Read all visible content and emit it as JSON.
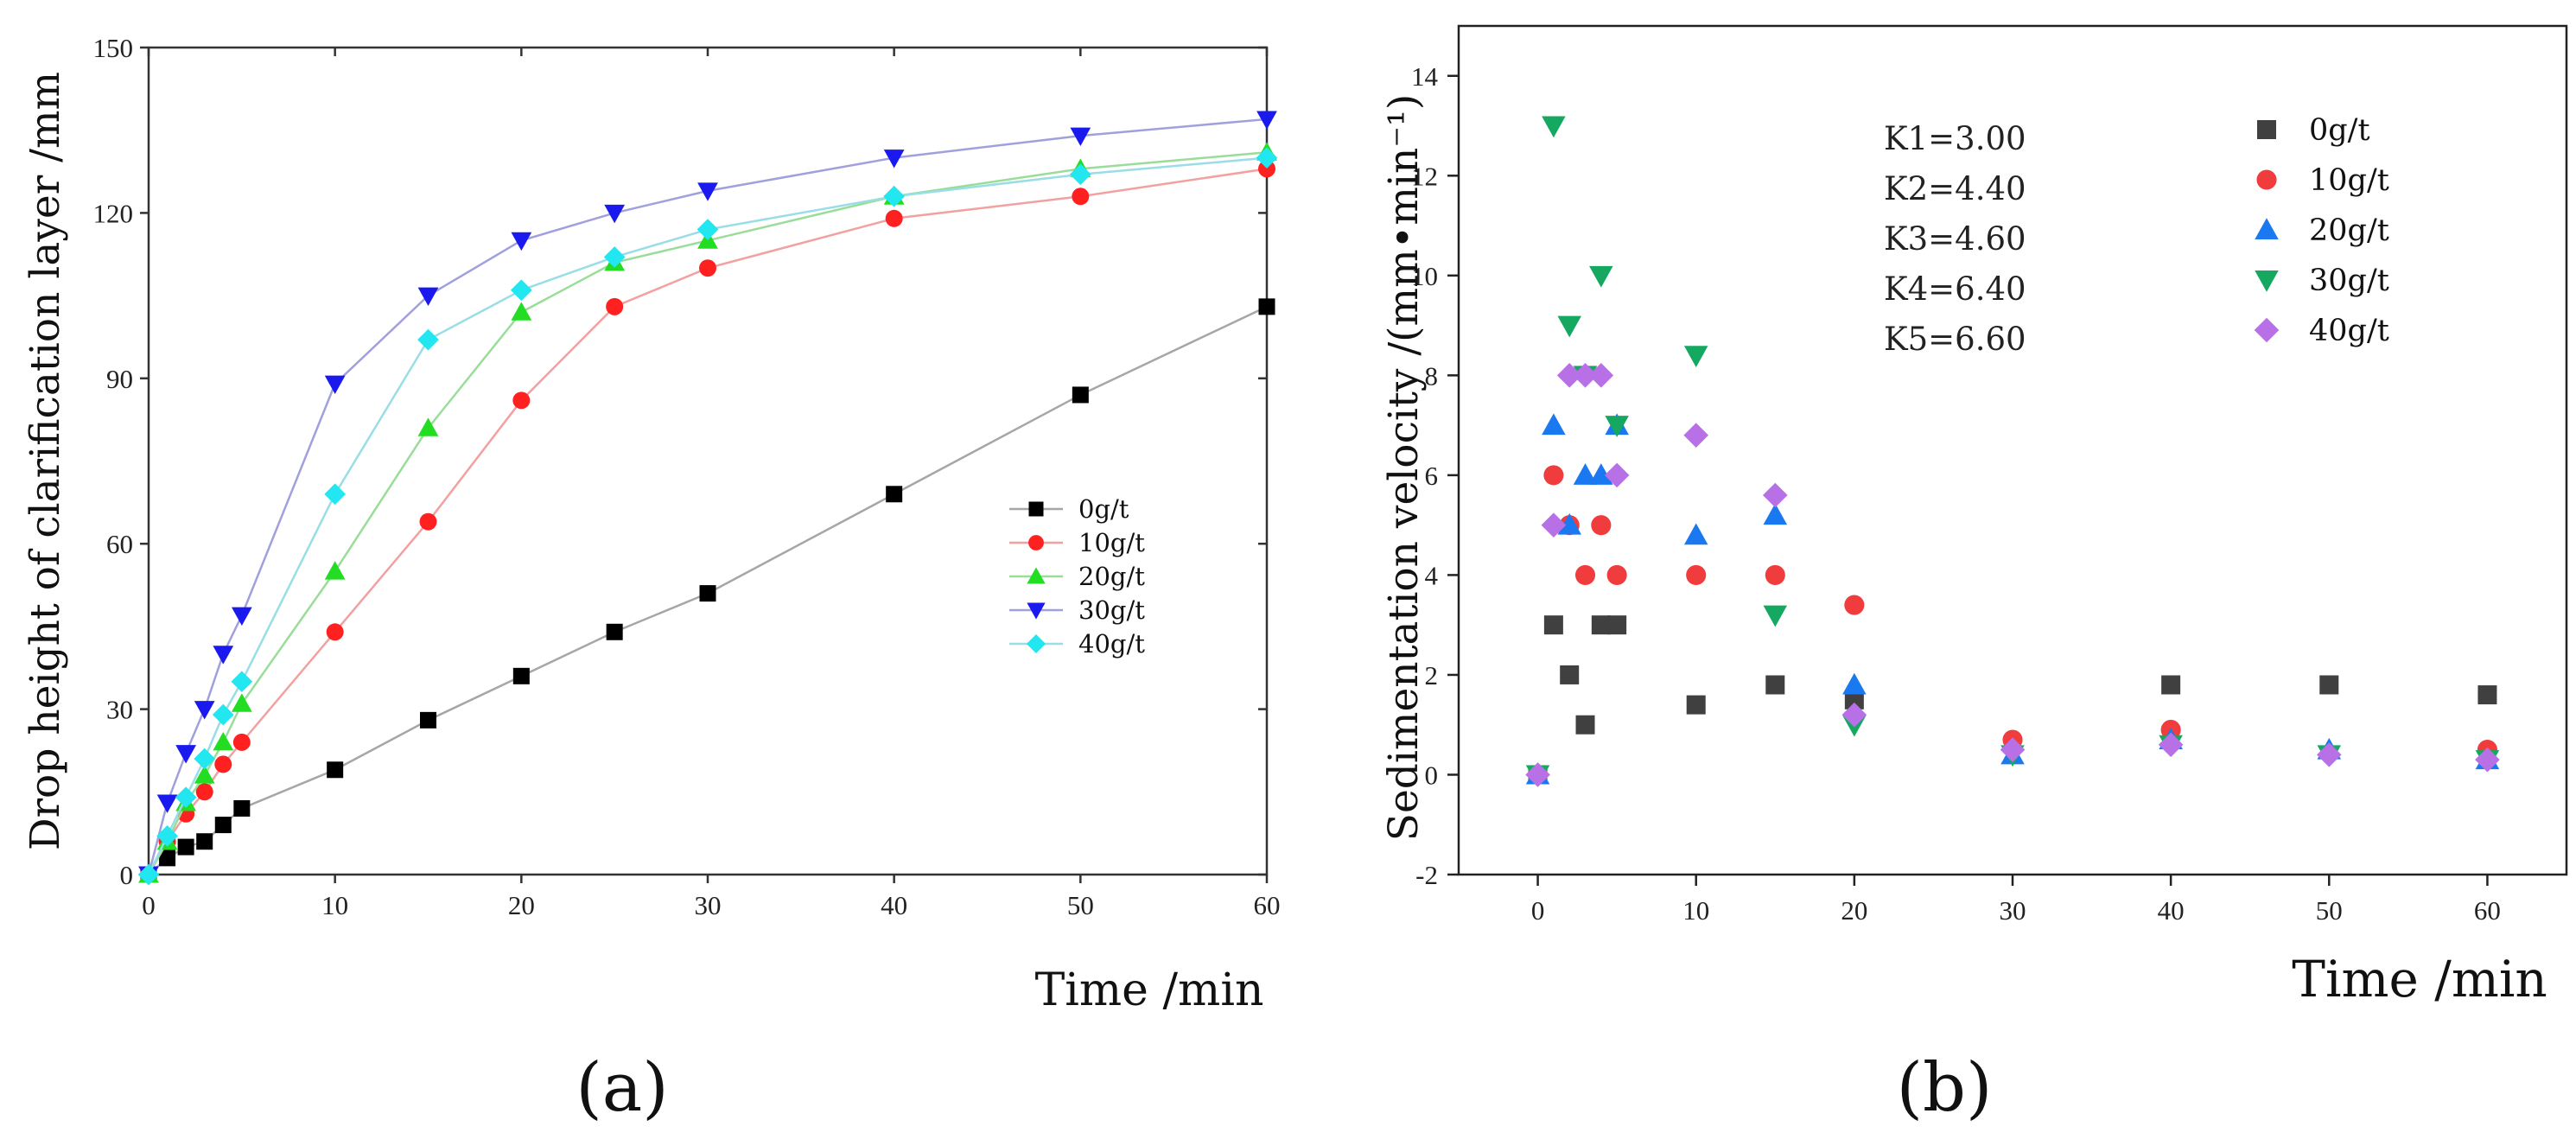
{
  "chart_data": [
    {
      "panel": "(a)",
      "type": "line",
      "xlabel": "Time /min",
      "ylabel": "Drop height of clarification layer /mm",
      "xlim": [
        0,
        60
      ],
      "ylim": [
        0,
        150
      ],
      "xticks": [
        0,
        10,
        20,
        30,
        40,
        50,
        60
      ],
      "yticks": [
        0,
        30,
        60,
        90,
        120,
        150
      ],
      "grid": false,
      "legend": "center-right",
      "x": [
        0,
        1,
        2,
        3,
        4,
        5,
        10,
        15,
        20,
        25,
        30,
        40,
        50,
        60
      ],
      "series": [
        {
          "name": "0g/t",
          "marker": "square",
          "color": "#000000",
          "line_color": "#a6a6a6",
          "values": [
            0,
            3,
            5,
            6,
            9,
            12,
            19,
            28,
            36,
            44,
            51,
            69,
            87,
            103
          ]
        },
        {
          "name": "10g/t",
          "marker": "circle",
          "color": "#ff2020",
          "line_color": "#f2a0a0",
          "values": [
            0,
            6,
            11,
            15,
            20,
            24,
            44,
            64,
            86,
            103,
            110,
            119,
            123,
            128
          ]
        },
        {
          "name": "20g/t",
          "marker": "triangle-up",
          "color": "#22dd22",
          "line_color": "#99dd99",
          "values": [
            0,
            6,
            13,
            18,
            24,
            31,
            55,
            81,
            102,
            111,
            115,
            123,
            128,
            131
          ]
        },
        {
          "name": "30g/t",
          "marker": "triangle-down",
          "color": "#1a1aee",
          "line_color": "#a0a0dd",
          "values": [
            0,
            13,
            22,
            30,
            40,
            47,
            89,
            105,
            115,
            120,
            124,
            130,
            134,
            137
          ]
        },
        {
          "name": "40g/t",
          "marker": "diamond",
          "color": "#22e6f0",
          "line_color": "#99dde6",
          "values": [
            0,
            7,
            14,
            21,
            29,
            35,
            69,
            97,
            106,
            112,
            117,
            123,
            127,
            130
          ]
        }
      ]
    },
    {
      "panel": "(b)",
      "type": "scatter",
      "xlabel": "Time /min",
      "ylabel": "Sedimentation velocity /(mm•min⁻¹)",
      "xlim": [
        -5,
        65
      ],
      "ylim": [
        -2,
        15
      ],
      "xticks": [
        0,
        10,
        20,
        30,
        40,
        50,
        60
      ],
      "yticks": [
        -2,
        0,
        2,
        4,
        6,
        8,
        10,
        12,
        14
      ],
      "grid": false,
      "legend": "top-right",
      "annotations": [
        "K1=3.00",
        "K2=4.40",
        "K3=4.60",
        "K4=6.40",
        "K5=6.60"
      ],
      "series": [
        {
          "name": "0g/t",
          "marker": "square",
          "color": "#404040",
          "points": [
            [
              0,
              0
            ],
            [
              1,
              3
            ],
            [
              2,
              2
            ],
            [
              3,
              1
            ],
            [
              4,
              3
            ],
            [
              5,
              3
            ],
            [
              10,
              1.4
            ],
            [
              15,
              1.8
            ],
            [
              20,
              1.5
            ],
            [
              40,
              1.8
            ],
            [
              50,
              1.8
            ],
            [
              60,
              1.6
            ]
          ]
        },
        {
          "name": "10g/t",
          "marker": "circle",
          "color": "#f03c3c",
          "points": [
            [
              0,
              0
            ],
            [
              1,
              6
            ],
            [
              2,
              5
            ],
            [
              3,
              4
            ],
            [
              4,
              5
            ],
            [
              5,
              4
            ],
            [
              10,
              4
            ],
            [
              15,
              4
            ],
            [
              20,
              3.4
            ],
            [
              30,
              0.7
            ],
            [
              40,
              0.9
            ],
            [
              60,
              0.5
            ]
          ]
        },
        {
          "name": "20g/t",
          "marker": "triangle-up",
          "color": "#1a78f0",
          "points": [
            [
              0,
              0
            ],
            [
              1,
              7
            ],
            [
              2,
              5
            ],
            [
              3,
              6
            ],
            [
              4,
              6
            ],
            [
              5,
              7
            ],
            [
              10,
              4.8
            ],
            [
              15,
              5.2
            ],
            [
              20,
              1.8
            ],
            [
              30,
              0.4
            ],
            [
              40,
              0.7
            ],
            [
              50,
              0.5
            ],
            [
              60,
              0.3
            ]
          ]
        },
        {
          "name": "30g/t",
          "marker": "triangle-down",
          "color": "#14a860",
          "points": [
            [
              0,
              0
            ],
            [
              1,
              13
            ],
            [
              2,
              9
            ],
            [
              3,
              8
            ],
            [
              4,
              10
            ],
            [
              5,
              7
            ],
            [
              10,
              8.4
            ],
            [
              15,
              3.2
            ],
            [
              20,
              1
            ],
            [
              30,
              0.4
            ],
            [
              40,
              0.6
            ],
            [
              50,
              0.4
            ],
            [
              60,
              0.3
            ]
          ]
        },
        {
          "name": "40g/t",
          "marker": "diamond",
          "color": "#b870e6",
          "points": [
            [
              0,
              0
            ],
            [
              1,
              5
            ],
            [
              2,
              8
            ],
            [
              3,
              8
            ],
            [
              4,
              8
            ],
            [
              5,
              6
            ],
            [
              10,
              6.8
            ],
            [
              15,
              5.6
            ],
            [
              20,
              1.2
            ],
            [
              30,
              0.5
            ],
            [
              40,
              0.6
            ],
            [
              50,
              0.4
            ],
            [
              60,
              0.3
            ]
          ]
        }
      ]
    }
  ],
  "labels": {
    "panel_a": "(a)",
    "panel_b": "(b)"
  }
}
